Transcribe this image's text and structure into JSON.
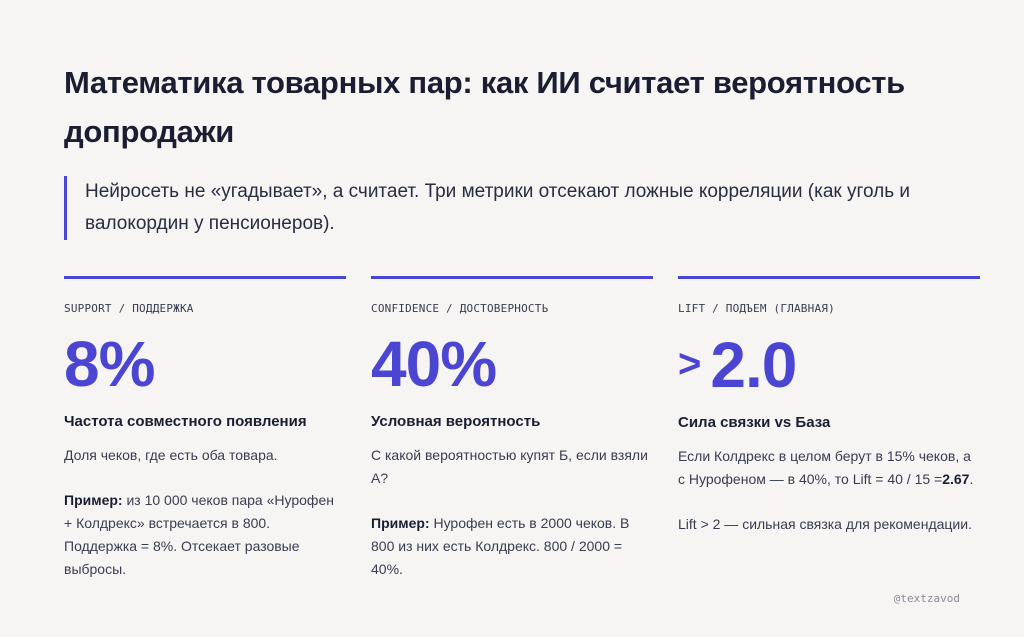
{
  "header": {
    "title": "Математика товарных пар: как ИИ считает вероятность допродажи",
    "lead": "Нейросеть не «угадывает», а считает. Три метрики отсекают ложные корреляции (как уголь и валокордин у пенсионеров)."
  },
  "metrics": [
    {
      "label": "SUPPORT / ПОДДЕРЖКА",
      "value": "8%",
      "subtitle": "Частота совместного появления",
      "description": "Доля чеков, где есть оба товара.",
      "example_label": "Пример:",
      "example_text": " из 10 000 чеков пара «Нурофен + Колдрекс» встречается в 800. Поддержка = 8%. Отсекает разовые выбросы."
    },
    {
      "label": "CONFIDENCE / ДОСТОВЕРНОСТЬ",
      "value": "40%",
      "subtitle": "Условная вероятность",
      "description": "С какой вероятностью купят Б, если взяли А?",
      "example_label": "Пример:",
      "example_text": " Нурофен есть в 2000 чеков. В 800 из них есть Колдрекс. 800 / 2000 = 40%."
    },
    {
      "label": "LIFT / ПОДЪЕМ (ГЛАВНАЯ)",
      "value_prefix": ">",
      "value": "2.0",
      "subtitle": "Сила связки vs База",
      "description": "Если Колдрекс в целом берут в 15% чеков, а с Нурофеном — в 40%, то Lift = 40 / 15 =",
      "description_bold": "2.67",
      "description_end": ".",
      "note": "Lift > 2 — сильная связка для рекомендации."
    }
  ],
  "footer": {
    "handle": "@textzavod"
  },
  "colors": {
    "accent": "#4b45d3",
    "background": "#f6f5f3",
    "text": "#1b1d33"
  }
}
